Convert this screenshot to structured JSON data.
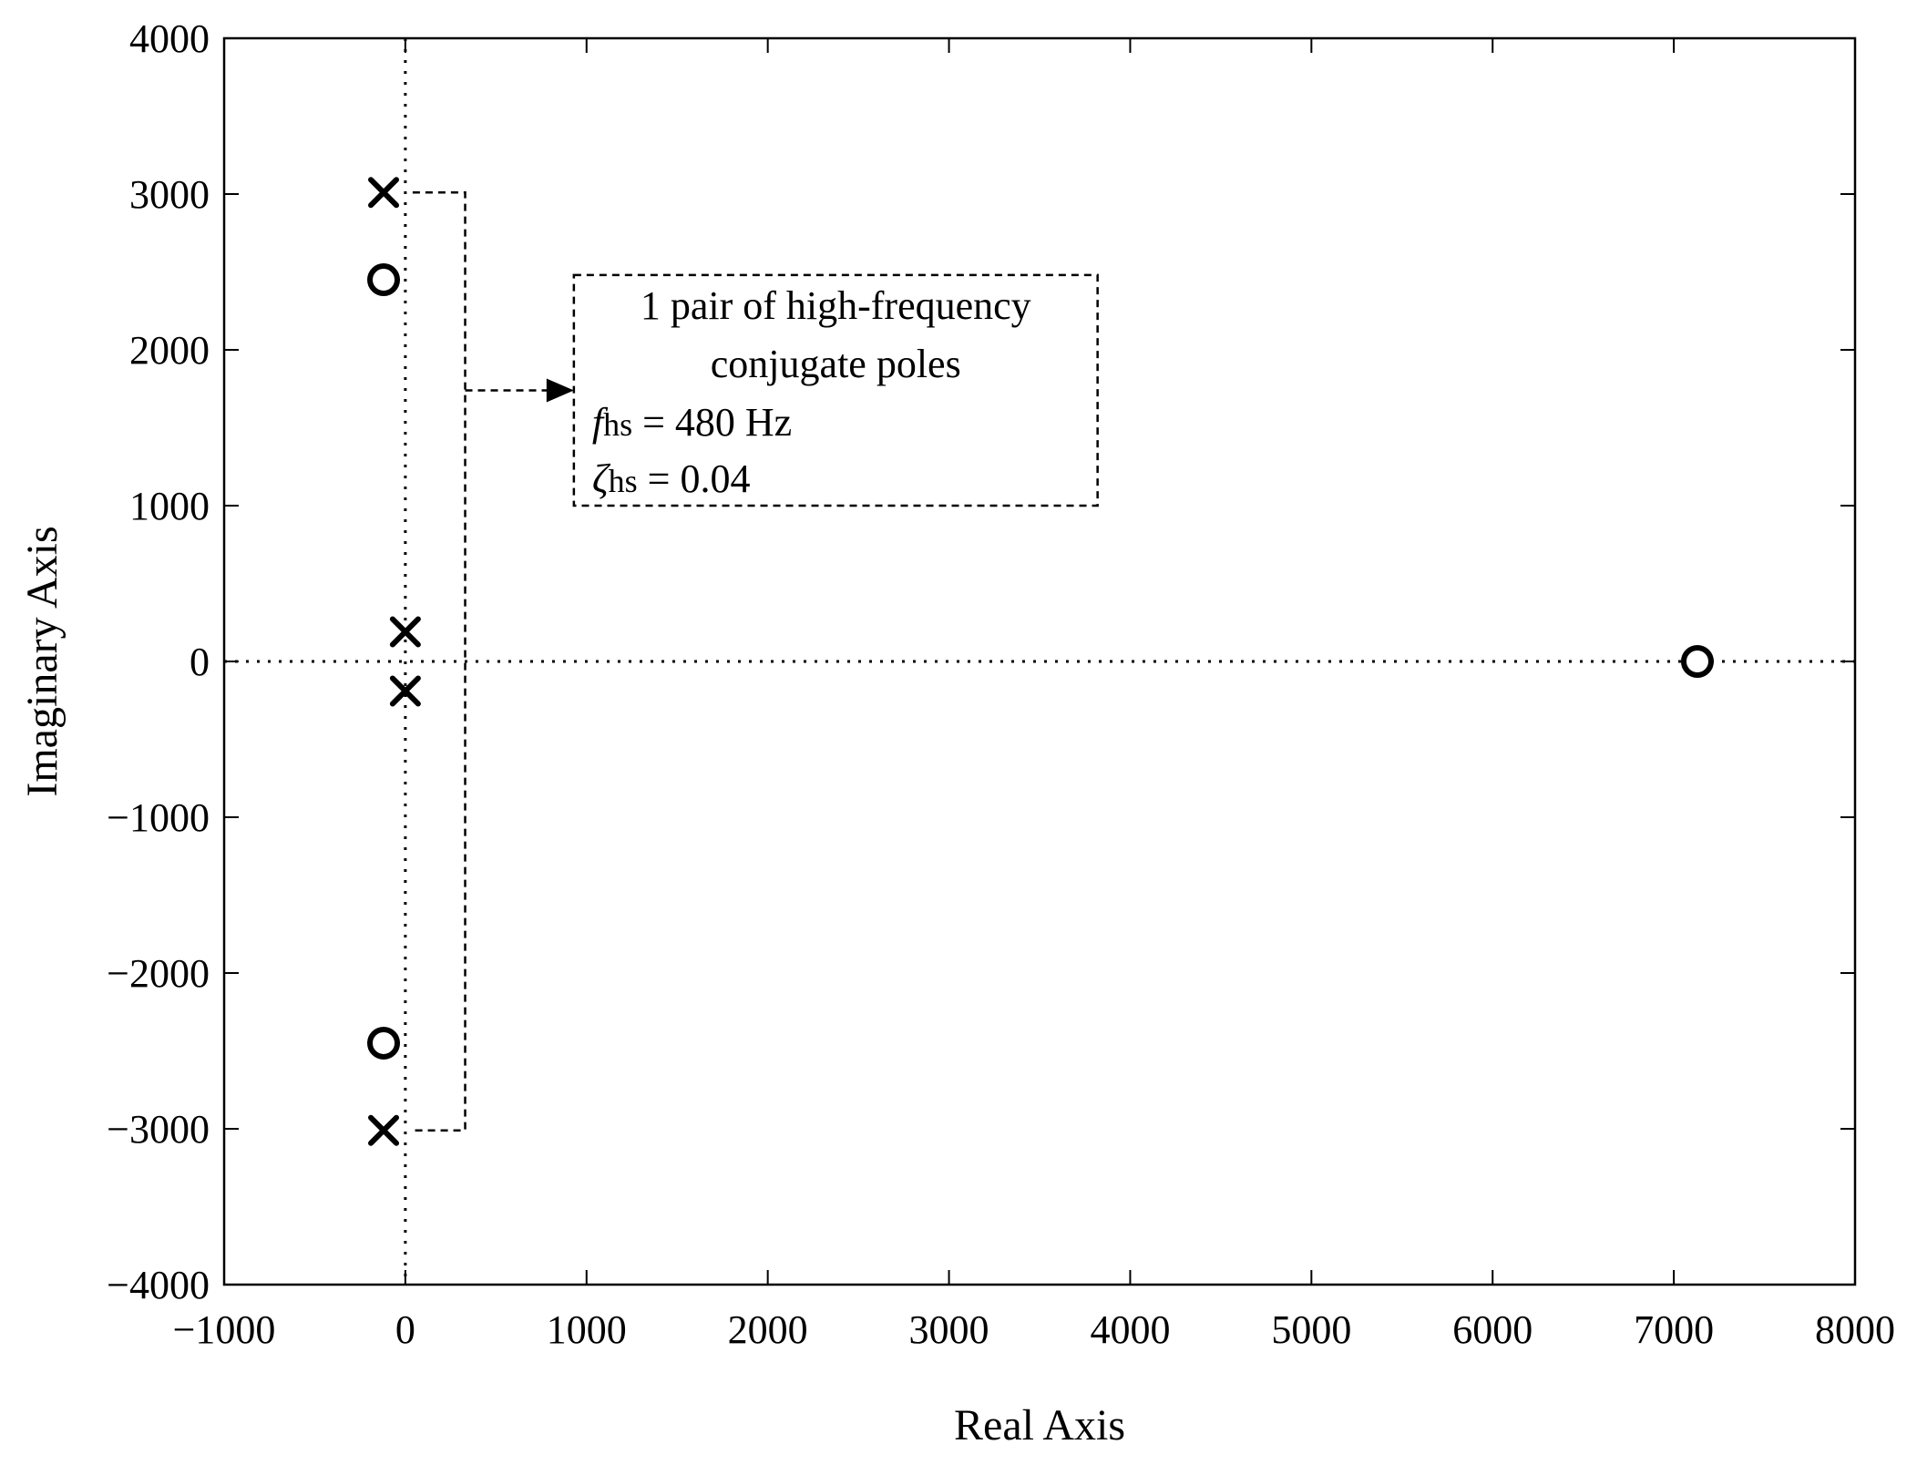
{
  "chart_data": {
    "type": "scatter",
    "title": "",
    "xlabel": "Real Axis",
    "ylabel": "Imaginary Axis",
    "xlim": [
      -1000,
      8000
    ],
    "ylim": [
      -4000,
      4000
    ],
    "xticks": [
      -1000,
      0,
      1000,
      2000,
      3000,
      4000,
      5000,
      6000,
      7000,
      8000
    ],
    "yticks": [
      -4000,
      -3000,
      -2000,
      -1000,
      0,
      1000,
      2000,
      3000,
      4000
    ],
    "xtick_labels": [
      "−1000",
      "0",
      "1000",
      "2000",
      "3000",
      "4000",
      "5000",
      "6000",
      "7000",
      "8000"
    ],
    "ytick_labels": [
      "−4000",
      "−3000",
      "−2000",
      "−1000",
      "0",
      "1000",
      "2000",
      "3000",
      "4000"
    ],
    "grid": false,
    "reference_lines": {
      "x": 0,
      "y": 0,
      "style": "dotted"
    },
    "series": [
      {
        "marker": "x",
        "points": [
          {
            "x": -120,
            "y": 3010
          },
          {
            "x": -120,
            "y": -3010
          },
          {
            "x": 0,
            "y": 190
          },
          {
            "x": 0,
            "y": -190
          }
        ]
      },
      {
        "marker": "o",
        "points": [
          {
            "x": -120,
            "y": 2450
          },
          {
            "x": -120,
            "y": -2450
          },
          {
            "x": 7130,
            "y": 0
          }
        ]
      }
    ],
    "annotation": {
      "bracket": {
        "x": 330,
        "y_top": 3010,
        "y_bottom": -3010,
        "y_arrow": 1740
      },
      "box": {
        "x1": 930,
        "x2": 3820,
        "y_top": 2480,
        "y_bottom": 1000
      },
      "lines": [
        "1 pair of high-frequency",
        "conjugate poles"
      ],
      "f_symbol": "f",
      "f_sub": "hs",
      "f_value": " = 480 Hz",
      "zeta_symbol": "ζ",
      "zeta_sub": "hs",
      "zeta_value": " = 0.04"
    },
    "colors": {
      "marker": "#000000",
      "axis": "#000000"
    }
  }
}
